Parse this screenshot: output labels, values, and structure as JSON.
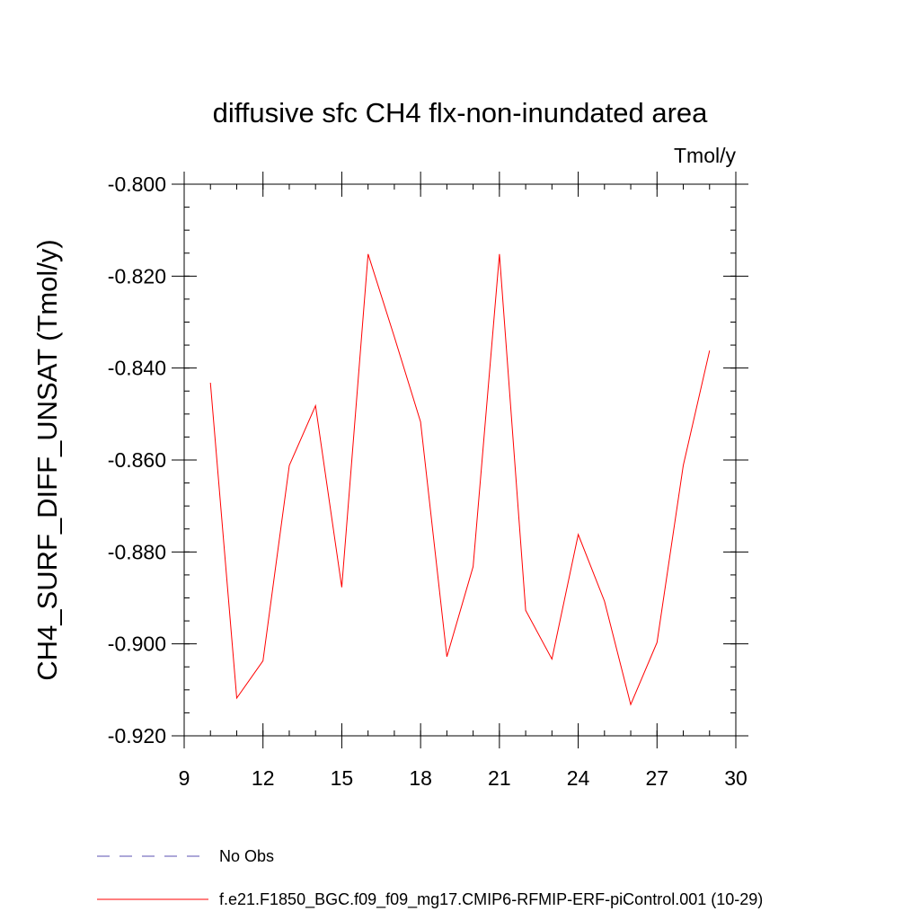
{
  "chart_data": {
    "type": "line",
    "title": "diffusive sfc CH4 flx-non-inundated area",
    "units_label": "Tmol/y",
    "xlabel": "",
    "ylabel": "CH4_SURF_DIFF_UNSAT  (Tmol/y)",
    "xlim": [
      9,
      30
    ],
    "ylim": [
      -0.92,
      -0.8
    ],
    "xticks": [
      9,
      12,
      15,
      18,
      21,
      24,
      27,
      30
    ],
    "xtick_labels": [
      "9",
      "12",
      "15",
      "18",
      "21",
      "24",
      "27",
      "30"
    ],
    "yticks": [
      -0.92,
      -0.9,
      -0.88,
      -0.86,
      -0.84,
      -0.82,
      -0.8
    ],
    "ytick_labels": [
      "-0.920",
      "-0.900",
      "-0.880",
      "-0.860",
      "-0.840",
      "-0.820",
      "-0.800"
    ],
    "x_minor_step": 1,
    "y_minor_step": 0.005,
    "series": [
      {
        "name": "f.e21.F1850_BGC.f09_f09_mg17.CMIP6-RFMIP-ERF-piControl.001 (10-29)",
        "color": "#ff0000",
        "x": [
          10,
          11,
          12,
          13,
          14,
          15,
          16,
          17,
          18,
          19,
          20,
          21,
          22,
          23,
          24,
          25,
          26,
          27,
          28,
          29
        ],
        "values": [
          -0.8432,
          -0.9118,
          -0.9037,
          -0.8612,
          -0.8482,
          -0.8877,
          -0.8152,
          -0.8332,
          -0.8517,
          -0.9028,
          -0.8832,
          -0.8152,
          -0.8927,
          -0.9033,
          -0.8762,
          -0.8907,
          -0.9132,
          -0.8997,
          -0.8612,
          -0.8362
        ]
      }
    ],
    "legend": {
      "position": "bottom-left",
      "entries": [
        {
          "label": "No Obs",
          "color": "#5a4fb0",
          "style": "dashed"
        },
        {
          "label": "f.e21.F1850_BGC.f09_f09_mg17.CMIP6-RFMIP-ERF-piControl.001 (10-29)",
          "color": "#ff0000",
          "style": "solid"
        }
      ]
    }
  }
}
